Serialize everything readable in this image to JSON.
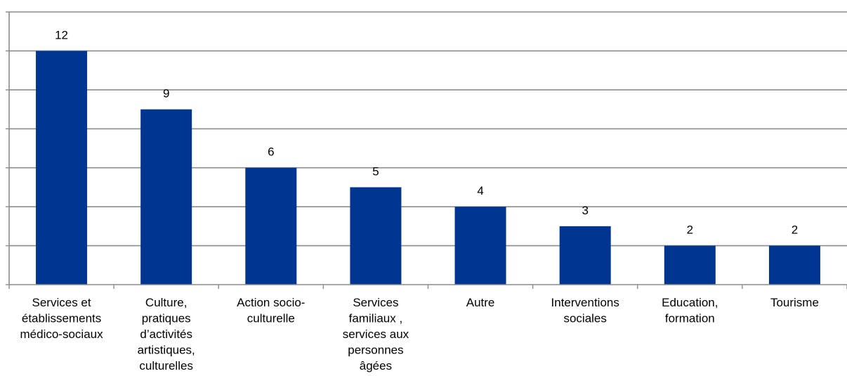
{
  "colors": {
    "bar": "#003591",
    "grid": "#8c8c8c"
  },
  "chart_data": {
    "type": "bar",
    "title": "",
    "xlabel": "",
    "ylabel": "",
    "categories": [
      [
        "Services et",
        "établissements",
        "médico-sociaux"
      ],
      [
        "Culture,",
        "pratiques",
        "d’activités",
        "artistiques,",
        "culturelles"
      ],
      [
        "Action socio-",
        "culturelle"
      ],
      [
        "Services",
        "familiaux ,",
        "services aux",
        "personnes",
        "âgées"
      ],
      [
        "Autre"
      ],
      [
        "Interventions",
        "sociales"
      ],
      [
        "Education,",
        "formation"
      ],
      [
        "Tourisme"
      ]
    ],
    "values": [
      12,
      9,
      6,
      5,
      4,
      3,
      2,
      2
    ],
    "data_labels": [
      "12",
      "9",
      "6",
      "5",
      "4",
      "3",
      "2",
      "2"
    ],
    "ylim": [
      0,
      14
    ],
    "ytick_step": 2,
    "grid": true,
    "legend": "none"
  }
}
